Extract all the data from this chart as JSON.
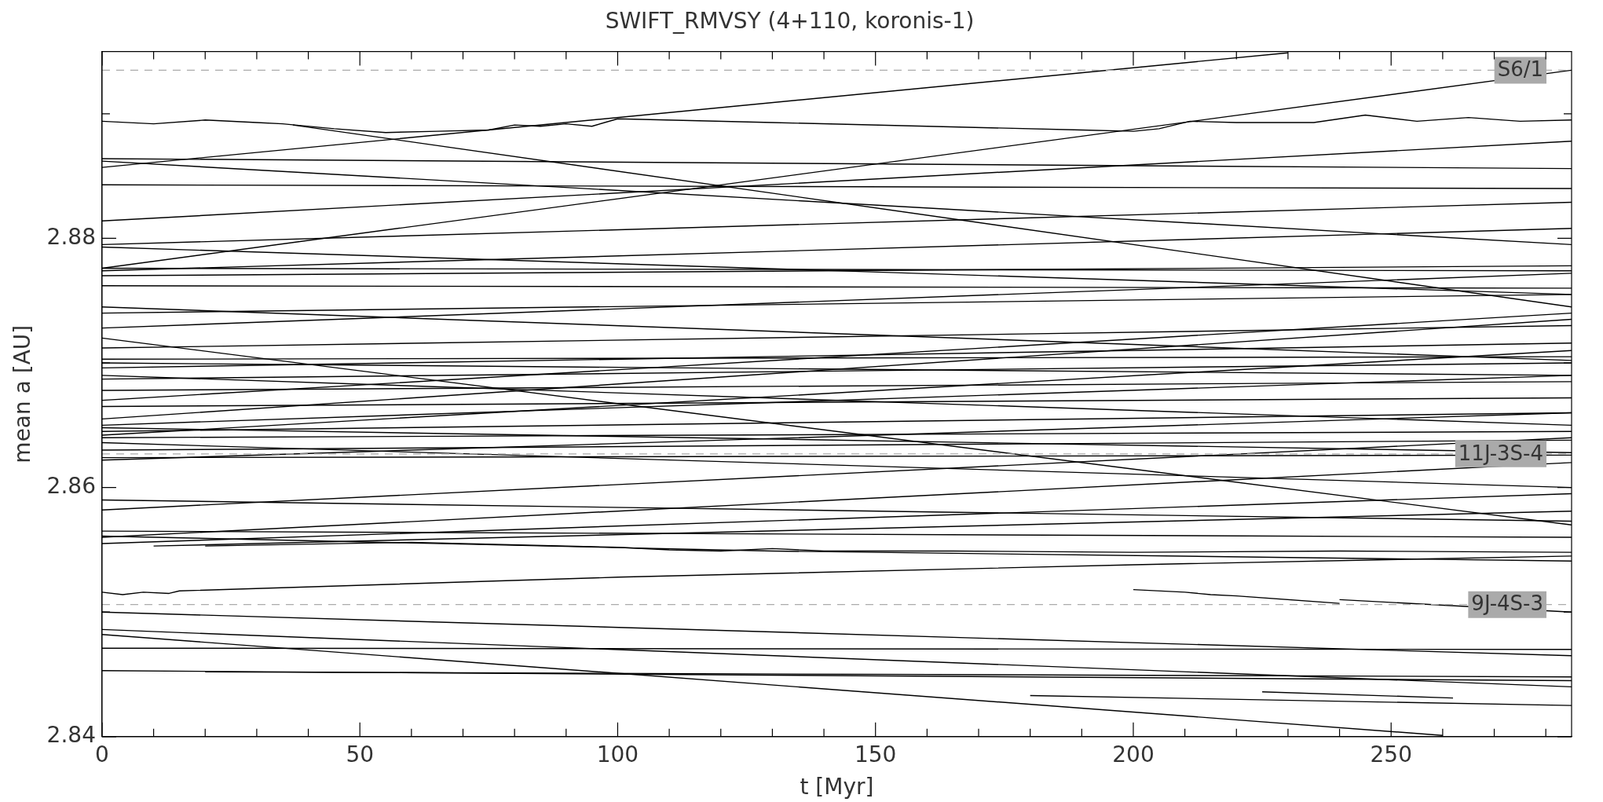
{
  "chart_data": {
    "type": "line",
    "title": "SWIFT_RMVSY (4+110, koronis-1)",
    "xlabel": "t [Myr]",
    "ylabel": "mean a [AU]",
    "color": "#000000",
    "xlim": [
      0,
      285
    ],
    "xticks": [
      0,
      {
        "value": 10,
        "label": null
      },
      {
        "value": 20,
        "label": null
      },
      {
        "value": 30,
        "label": null
      },
      {
        "value": 40,
        "label": null
      },
      50,
      {
        "value": 60,
        "label": null
      },
      {
        "value": 70,
        "label": null
      },
      {
        "value": 80,
        "label": null
      },
      {
        "value": 90,
        "label": null
      },
      100,
      {
        "value": 110,
        "label": null
      },
      {
        "value": 120,
        "label": null
      },
      {
        "value": 130,
        "label": null
      },
      {
        "value": 140,
        "label": null
      },
      150,
      {
        "value": 160,
        "label": null
      },
      {
        "value": 170,
        "label": null
      },
      {
        "value": 180,
        "label": null
      },
      {
        "value": 190,
        "label": null
      },
      200,
      {
        "value": 210,
        "label": null
      },
      {
        "value": 220,
        "label": null
      },
      {
        "value": 230,
        "label": null
      },
      {
        "value": 240,
        "label": null
      },
      250,
      {
        "value": 260,
        "label": null
      },
      {
        "value": 270,
        "label": null
      },
      {
        "value": 280,
        "label": null
      }
    ],
    "ylim": [
      2.84,
      2.895
    ],
    "yticks": [
      2.84,
      {
        "value": 2.85,
        "label": null
      },
      2.86,
      {
        "value": 2.87,
        "label": null
      },
      2.88,
      {
        "value": 2.89,
        "label": null
      }
    ],
    "ref_lines": [
      {
        "axis": "y",
        "value": 2.8935,
        "label": "S6/1",
        "color": "#aaaaaa",
        "line_style": "dashed"
      },
      {
        "axis": "y",
        "value": 2.8627,
        "label": "11J-3S-4",
        "color": "#aaaaaa",
        "line_style": "dashed"
      },
      {
        "axis": "y",
        "value": 2.8506,
        "label": "9J-4S-3",
        "color": "#aaaaaa",
        "line_style": "dashed"
      }
    ],
    "series": [
      {
        "x": [
          0,
          230
        ],
        "values": [
          2.8857,
          2.8949
        ]
      },
      {
        "x": [
          0,
          285
        ],
        "values": [
          2.8776,
          2.8935
        ]
      },
      {
        "x": [
          0,
          10,
          20,
          30,
          35,
          45,
          55,
          65,
          75,
          80,
          85,
          90,
          95,
          100,
          130,
          160,
          190,
          200,
          205,
          211,
          220,
          235,
          240,
          245,
          255,
          265,
          275,
          285
        ],
        "values": [
          2.8894,
          2.8892,
          2.8895,
          2.8893,
          2.8892,
          2.8888,
          2.8885,
          2.8886,
          2.8887,
          2.8891,
          2.889,
          2.8892,
          2.889,
          2.8896,
          2.8893,
          2.889,
          2.8887,
          2.8886,
          2.8888,
          2.8894,
          2.8893,
          2.8893,
          2.8896,
          2.8899,
          2.8894,
          2.8897,
          2.8894,
          2.8895
        ]
      },
      {
        "x": [
          0,
          285
        ],
        "values": [
          2.8814,
          2.8878
        ]
      },
      {
        "x": [
          0,
          285
        ],
        "values": [
          2.8864,
          2.8856
        ]
      },
      {
        "x": [
          0,
          285
        ],
        "values": [
          2.8843,
          2.884
        ]
      },
      {
        "x": [
          37,
          285
        ],
        "values": [
          2.8891,
          2.8745
        ]
      },
      {
        "x": [
          0,
          285
        ],
        "values": [
          2.8862,
          2.8795
        ]
      },
      {
        "x": [
          0,
          285
        ],
        "values": [
          2.8795,
          2.8829
        ]
      },
      {
        "x": [
          0,
          285
        ],
        "values": [
          2.8774,
          2.8808
        ]
      },
      {
        "x": [
          0,
          285
        ],
        "values": [
          2.8793,
          2.8755
        ]
      },
      {
        "x": [
          0,
          285
        ],
        "values": [
          2.8776,
          2.8774
        ]
      },
      {
        "x": [
          0,
          285
        ],
        "values": [
          2.877,
          2.8778
        ]
      },
      {
        "x": [
          0,
          285
        ],
        "values": [
          2.8762,
          2.876
        ]
      },
      {
        "x": [
          0,
          285
        ],
        "values": [
          2.8745,
          2.8702
        ]
      },
      {
        "x": [
          0,
          285
        ],
        "values": [
          2.8728,
          2.8772
        ]
      },
      {
        "x": [
          0,
          285
        ],
        "values": [
          2.874,
          2.8755
        ]
      },
      {
        "x": [
          0,
          285
        ],
        "values": [
          2.872,
          2.857
        ]
      },
      {
        "x": [
          0,
          285
        ],
        "values": [
          2.8712,
          2.873
        ]
      },
      {
        "x": [
          0,
          285
        ],
        "values": [
          2.8703,
          2.8705
        ]
      },
      {
        "x": [
          0,
          285
        ],
        "values": [
          2.87,
          2.869
        ]
      },
      {
        "x": [
          0,
          285
        ],
        "values": [
          2.8696,
          2.8716
        ]
      },
      {
        "x": [
          0,
          285
        ],
        "values": [
          2.869,
          2.865
        ]
      },
      {
        "x": [
          0,
          285
        ],
        "values": [
          2.8687,
          2.87
        ]
      },
      {
        "x": [
          0,
          285
        ],
        "values": [
          2.8678,
          2.8685
        ]
      },
      {
        "x": [
          0,
          285
        ],
        "values": [
          2.867,
          2.874
        ]
      },
      {
        "x": [
          0,
          285
        ],
        "values": [
          2.8665,
          2.8672
        ]
      },
      {
        "x": [
          0,
          285
        ],
        "values": [
          2.8655,
          2.8735
        ]
      },
      {
        "x": [
          0,
          285
        ],
        "values": [
          2.865,
          2.869
        ]
      },
      {
        "x": [
          0,
          285
        ],
        "values": [
          2.8648,
          2.8628
        ]
      },
      {
        "x": [
          0,
          285
        ],
        "values": [
          2.8645,
          2.866
        ]
      },
      {
        "x": [
          0,
          285
        ],
        "values": [
          2.8642,
          2.871
        ]
      },
      {
        "x": [
          0,
          285
        ],
        "values": [
          2.864,
          2.8645
        ]
      },
      {
        "x": [
          0,
          285
        ],
        "values": [
          2.8636,
          2.86
        ]
      },
      {
        "x": [
          0,
          285
        ],
        "values": [
          2.863,
          2.8638
        ]
      },
      {
        "x": [
          0,
          285
        ],
        "values": [
          2.8624,
          2.8626
        ]
      },
      {
        "x": [
          0,
          285
        ],
        "values": [
          2.8622,
          2.866
        ]
      },
      {
        "x": [
          0,
          285
        ],
        "values": [
          2.859,
          2.8573
        ]
      },
      {
        "x": [
          0,
          285
        ],
        "values": [
          2.8582,
          2.864
        ]
      },
      {
        "x": [
          0,
          285
        ],
        "values": [
          2.8565,
          2.856
        ]
      },
      {
        "x": [
          0,
          285
        ],
        "values": [
          2.856,
          2.862
        ]
      },
      {
        "x": [
          0,
          285
        ],
        "values": [
          2.8555,
          2.8595
        ]
      },
      {
        "x": [
          10,
          285
        ],
        "values": [
          2.8553,
          2.8581
        ]
      },
      {
        "x": [
          20,
          60,
          100,
          110,
          120,
          130,
          140,
          165,
          200,
          240,
          285
        ],
        "values": [
          2.8553,
          2.8556,
          2.8552,
          2.855,
          2.8549,
          2.8551,
          2.8549,
          2.8549,
          2.8548,
          2.8549,
          2.8548
        ]
      },
      {
        "x": [
          0,
          130,
          285
        ],
        "values": [
          2.8561,
          2.8549,
          2.8541
        ]
      },
      {
        "x": [
          0,
          4,
          8,
          13,
          15,
          100,
          200,
          285
        ],
        "values": [
          2.8516,
          2.8514,
          2.8516,
          2.8515,
          2.8517,
          2.8528,
          2.8538,
          2.8545
        ]
      },
      {
        "x": [
          200,
          210,
          215,
          220,
          240
        ],
        "values": [
          2.8518,
          2.8516,
          2.8514,
          2.8513,
          2.8507
        ]
      },
      {
        "x": [
          240,
          285
        ],
        "values": [
          2.851,
          2.85
        ]
      },
      {
        "x": [
          0,
          285
        ],
        "values": [
          2.85,
          2.8465
        ]
      },
      {
        "x": [
          0,
          285
        ],
        "values": [
          2.8486,
          2.844
        ]
      },
      {
        "x": [
          0,
          285
        ],
        "values": [
          2.8471,
          2.847
        ]
      },
      {
        "x": [
          0,
          285
        ],
        "values": [
          2.8453,
          2.8445
        ]
      },
      {
        "x": [
          20,
          285
        ],
        "values": [
          2.8452,
          2.8448
        ]
      },
      {
        "x": [
          0,
          260
        ],
        "values": [
          2.8482,
          2.8401
        ]
      },
      {
        "x": [
          180,
          285
        ],
        "values": [
          2.8433,
          2.8425
        ]
      },
      {
        "x": [
          225,
          262
        ],
        "values": [
          2.8436,
          2.8431
        ]
      }
    ]
  }
}
